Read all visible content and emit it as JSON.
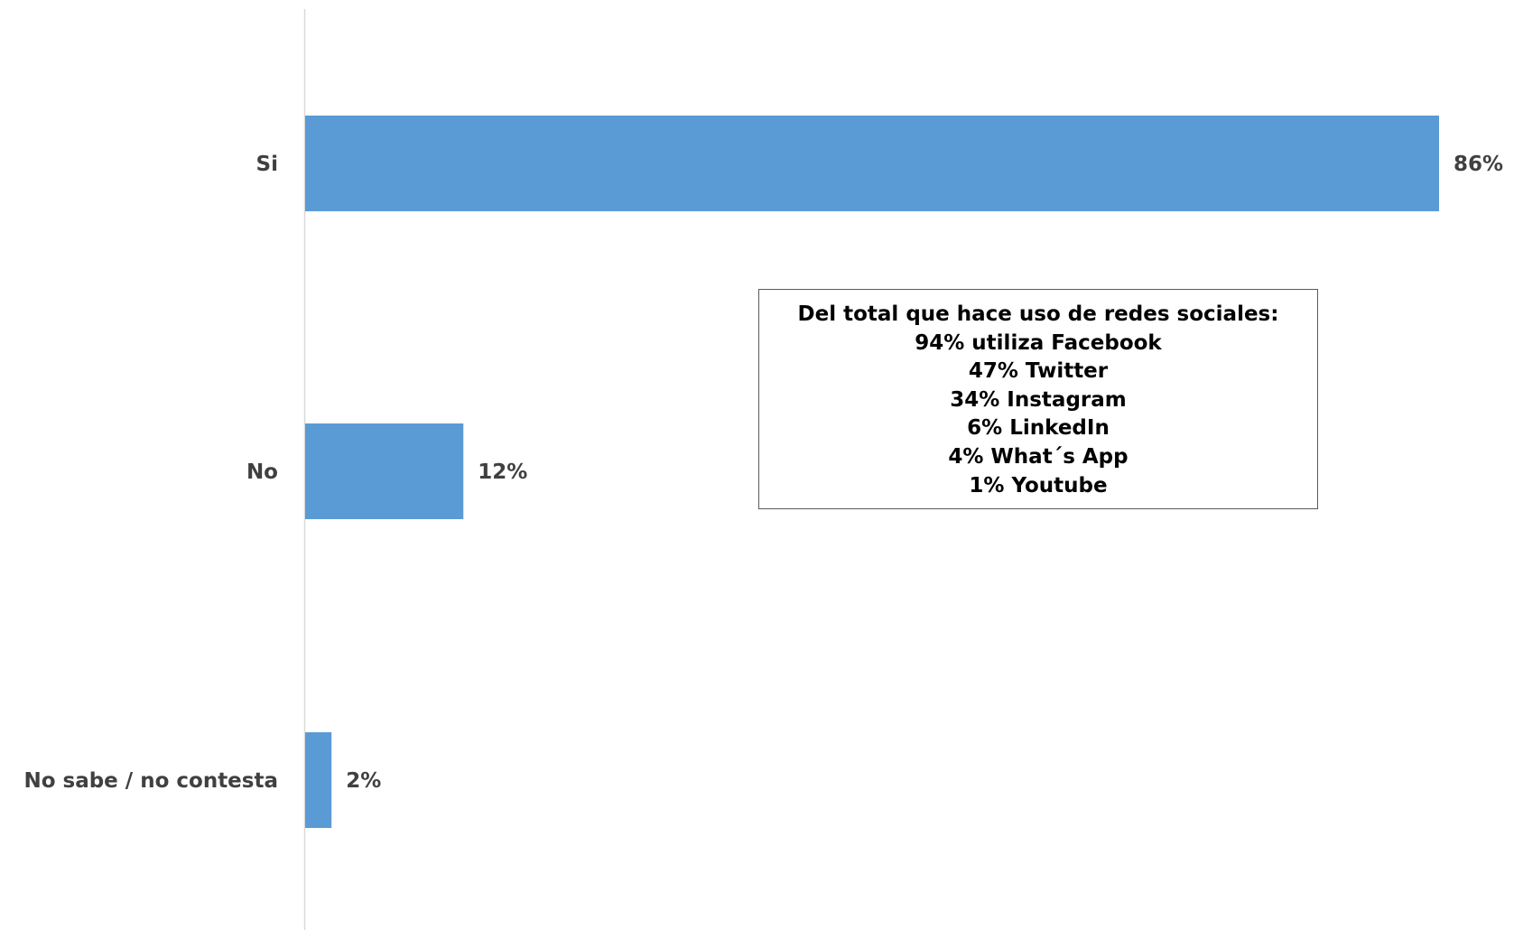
{
  "chart_data": {
    "type": "bar",
    "orientation": "horizontal",
    "categories": [
      "Si",
      "No",
      "No sabe / no contesta"
    ],
    "values": [
      86,
      12,
      2
    ],
    "value_labels": [
      "86%",
      "12%",
      "2%"
    ],
    "unit": "%",
    "xlim": [
      0,
      86
    ],
    "grid": false,
    "legend": "none",
    "colors": {
      "bar": "#5B9BD5",
      "axis": "#D9D9D9",
      "label": "#404040"
    },
    "annotation": {
      "lines": [
        "Del total que hace uso de redes sociales:",
        "94% utiliza Facebook",
        "47% Twitter",
        "34% Instagram",
        "6% LinkedIn",
        "4% What´s App",
        "1% Youtube"
      ]
    }
  }
}
